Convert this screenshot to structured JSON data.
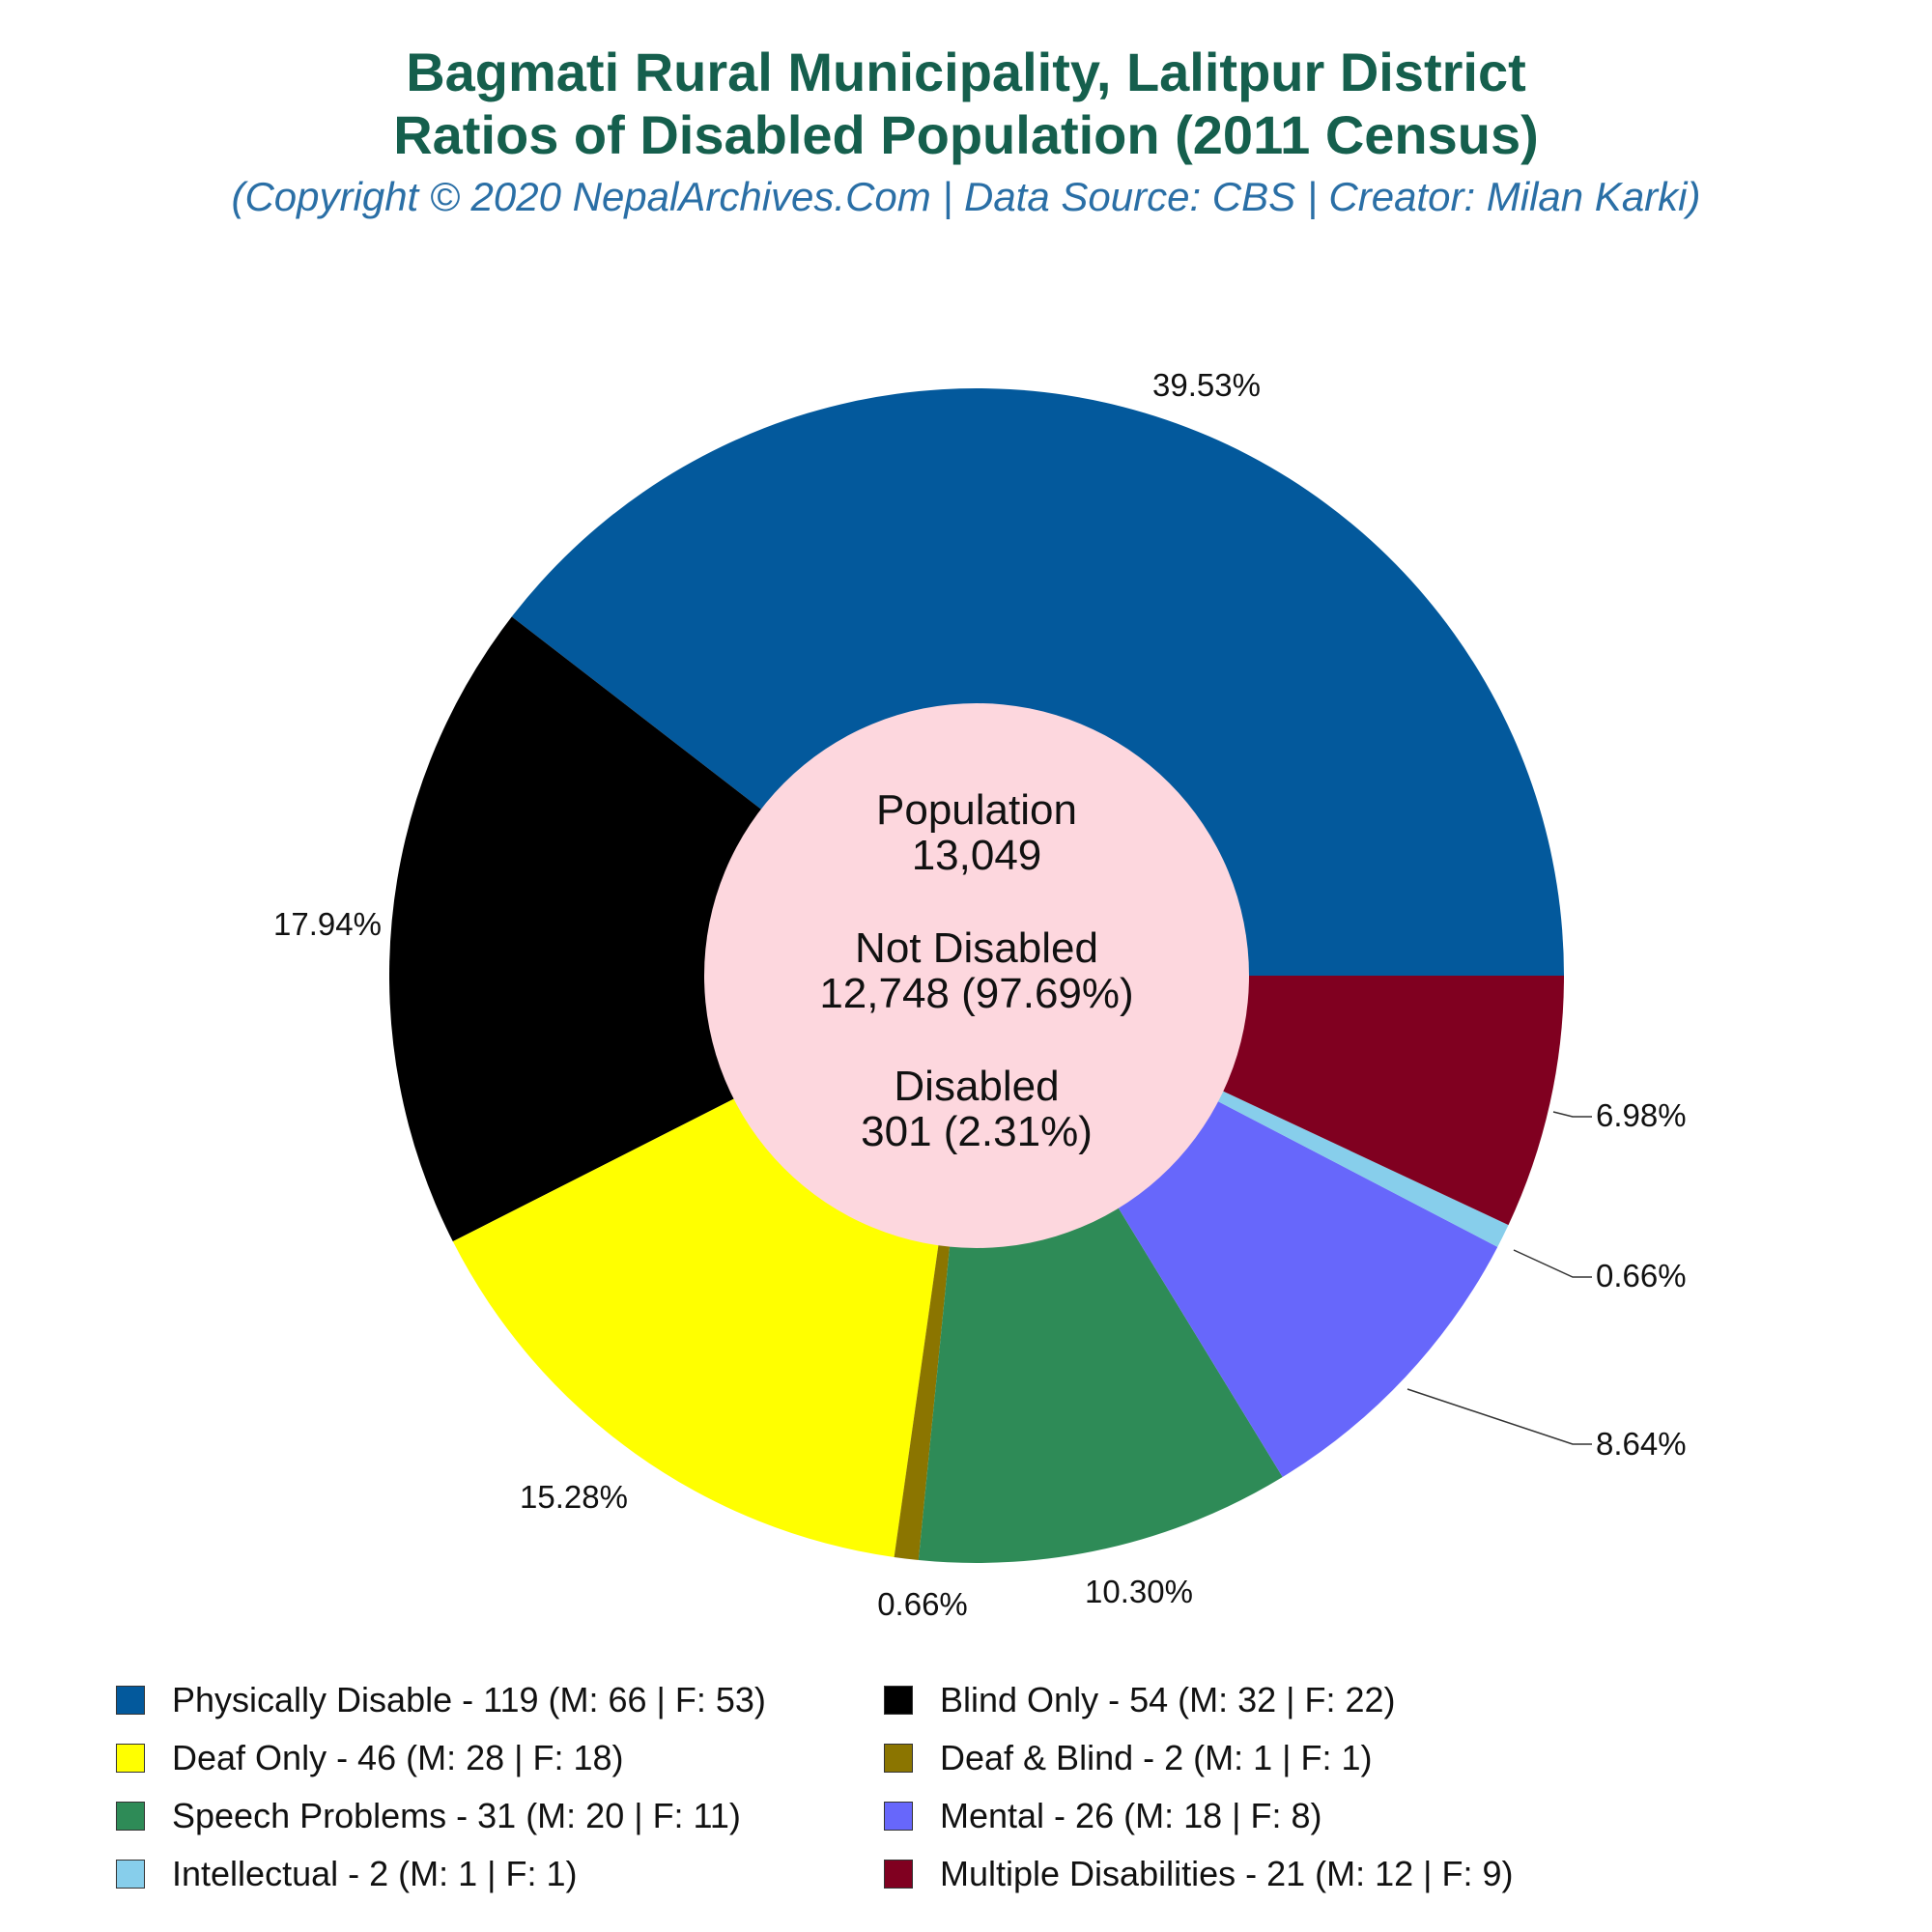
{
  "title_line1": "Bagmati Rural Municipality, Lalitpur District",
  "title_line2": "Ratios of Disabled Population (2011 Census)",
  "subtitle": "(Copyright © 2020 NepalArchives.Com | Data Source: CBS | Creator: Milan Karki)",
  "center": {
    "population_label": "Population",
    "population_value": "13,049",
    "not_disabled_label": "Not Disabled",
    "not_disabled_value": "12,748 (97.69%)",
    "disabled_label": "Disabled",
    "disabled_value": "301 (2.31%)"
  },
  "chart_data": {
    "type": "pie",
    "slices": [
      {
        "name": "Physically Disable",
        "value": 119,
        "male": 66,
        "female": 53,
        "percent": 39.53,
        "label": "39.53%",
        "color": "#03599c",
        "legend": "Physically Disable - 119 (M: 66 | F: 53)"
      },
      {
        "name": "Blind Only",
        "value": 54,
        "male": 32,
        "female": 22,
        "percent": 17.94,
        "label": "17.94%",
        "color": "#000000",
        "legend": "Blind Only - 54 (M: 32 | F: 22)"
      },
      {
        "name": "Deaf Only",
        "value": 46,
        "male": 28,
        "female": 18,
        "percent": 15.28,
        "label": "15.28%",
        "color": "#ffff00",
        "legend": "Deaf Only - 46 (M: 28 | F: 18)"
      },
      {
        "name": "Deaf & Blind",
        "value": 2,
        "male": 1,
        "female": 1,
        "percent": 0.66,
        "label": "0.66%",
        "color": "#8b7500",
        "legend": "Deaf & Blind - 2 (M: 1 | F: 1)"
      },
      {
        "name": "Speech Problems",
        "value": 31,
        "male": 20,
        "female": 11,
        "percent": 10.3,
        "label": "10.30%",
        "color": "#2e8b57",
        "legend": "Speech Problems - 31 (M: 20 | F: 11)"
      },
      {
        "name": "Mental",
        "value": 26,
        "male": 18,
        "female": 8,
        "percent": 8.64,
        "label": "8.64%",
        "color": "#6767fb",
        "legend": "Mental - 26 (M: 18 | F: 8)"
      },
      {
        "name": "Intellectual",
        "value": 2,
        "male": 1,
        "female": 1,
        "percent": 0.66,
        "label": "0.66%",
        "color": "#87ceeb",
        "legend": "Intellectual - 2 (M: 1 | F: 1)"
      },
      {
        "name": "Multiple Disabilities",
        "value": 21,
        "male": 12,
        "female": 9,
        "percent": 6.98,
        "label": "6.98%",
        "color": "#800020",
        "legend": "Multiple Disabilities - 21 (M: 12 | F: 9)"
      }
    ],
    "center_color": "#fdd7de",
    "legend_placement": "bottom"
  }
}
